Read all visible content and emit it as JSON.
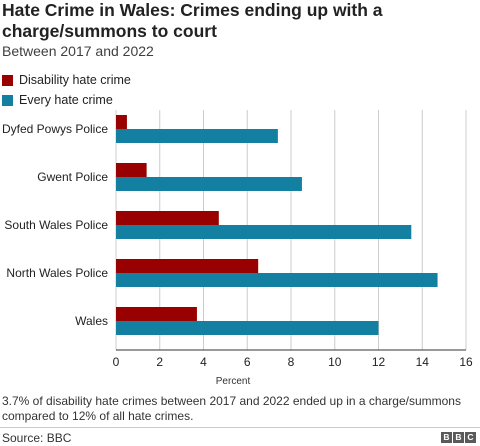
{
  "title": "Hate Crime in Wales: Crimes ending up with a charge/summons to court",
  "subtitle": "Between 2017 and 2022",
  "footnote": "3.7% of disability hate crimes between 2017 and 2022 ended up in a charge/summons compared to 12% of all hate crimes.",
  "source": "Source: BBC",
  "logo_letters": [
    "B",
    "B",
    "C"
  ],
  "colors": {
    "disability": "#990000",
    "every": "#1380A1",
    "grid": "#cccccc",
    "text": "#222222"
  },
  "chart_data": {
    "type": "bar",
    "orientation": "horizontal",
    "categories": [
      "Dyfed Powys Police",
      "Gwent Police",
      "South Wales Police",
      "North Wales Police",
      "Wales"
    ],
    "series": [
      {
        "name": "Disability hate crime",
        "values": [
          0.5,
          1.4,
          4.7,
          6.5,
          3.7
        ]
      },
      {
        "name": "Every hate crime",
        "values": [
          7.4,
          8.5,
          13.5,
          14.7,
          12.0
        ]
      }
    ],
    "xlabel": "Percent",
    "xlim": [
      0,
      16
    ],
    "xticks": [
      0,
      2,
      4,
      6,
      8,
      10,
      12,
      14,
      16
    ],
    "grid": true,
    "legend": "top-left"
  }
}
